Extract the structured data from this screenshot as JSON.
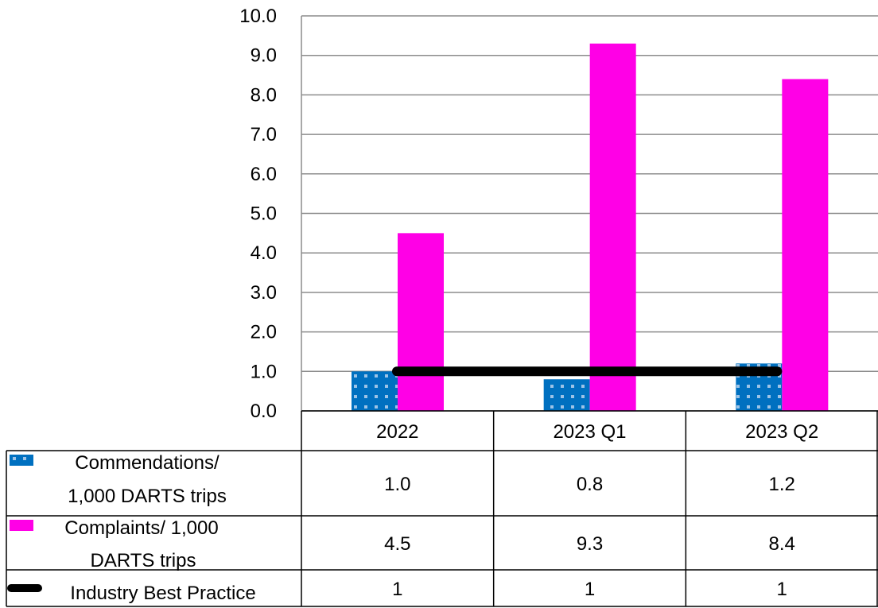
{
  "chart_data": {
    "type": "bar",
    "title": "",
    "xlabel": "",
    "ylabel": "",
    "ylim": [
      0,
      10
    ],
    "y_ticks": [
      "0.0",
      "1.0",
      "2.0",
      "3.0",
      "4.0",
      "5.0",
      "6.0",
      "7.0",
      "8.0",
      "9.0",
      "10.0"
    ],
    "grid": true,
    "legend": "data-table",
    "categories": [
      "2022",
      "2023 Q1",
      "2023 Q2"
    ],
    "series": [
      {
        "name_lines": [
          "Commendations/",
          "1,000 DARTS trips"
        ],
        "kind": "bar",
        "pattern": "dotted",
        "color": "#0070C0",
        "values": [
          1.0,
          0.8,
          1.2
        ],
        "table_values": [
          "1.0",
          "0.8",
          "1.2"
        ]
      },
      {
        "name_lines": [
          "Complaints/ 1,000",
          "DARTS trips"
        ],
        "kind": "bar",
        "color": "#FF00E6",
        "values": [
          4.5,
          9.3,
          8.4
        ],
        "table_values": [
          "4.5",
          "9.3",
          "8.4"
        ]
      },
      {
        "name_lines": [
          "Industry Best Practice"
        ],
        "kind": "line",
        "color": "#000000",
        "values": [
          1,
          1,
          1
        ],
        "table_values": [
          "1",
          "1",
          "1"
        ]
      }
    ]
  }
}
